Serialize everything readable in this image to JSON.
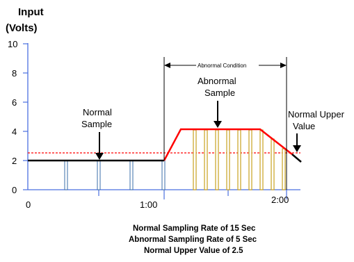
{
  "diagram": {
    "y_axis_title_line1": "Input",
    "y_axis_title_line2": "(Volts)",
    "y_ticks": [
      "10",
      "8",
      "6",
      "4",
      "2",
      "0"
    ],
    "x_ticks": [
      "0",
      "1:00",
      "2:00"
    ],
    "labels": {
      "normal_sample_1": "Normal",
      "normal_sample_2": "Sample",
      "abnormal_sample_1": "Abnormal",
      "abnormal_sample_2": "Sample",
      "abnormal_condition": "Abnormal Condition",
      "normal_upper_1": "Normal Upper",
      "normal_upper_2": "Value"
    },
    "caption": [
      "Normal Sampling Rate of 15 Sec",
      "Abnormal Sampling Rate of 5 Sec",
      "Normal Upper Value of 2.5"
    ],
    "colors": {
      "axis": "#4a6fe0",
      "signal": "#000000",
      "abnormal_signal": "#ff0000",
      "threshold": "#ff0000",
      "normal_bar": "#3a6ea8",
      "abnormal_bar": "#c9a21e"
    }
  }
}
